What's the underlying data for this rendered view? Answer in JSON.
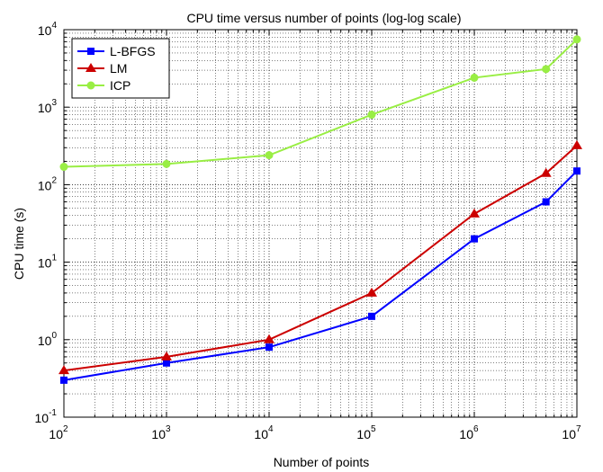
{
  "chart_data": {
    "type": "line",
    "title": "CPU time versus number of points (log-log scale)",
    "xlabel": "Number of points",
    "ylabel": "CPU time (s)",
    "xscale": "log",
    "yscale": "log",
    "xlim": [
      100,
      10000000
    ],
    "ylim": [
      0.1,
      10000
    ],
    "x_ticks": [
      {
        "base": "10",
        "exp": "2",
        "value": 100
      },
      {
        "base": "10",
        "exp": "3",
        "value": 1000
      },
      {
        "base": "10",
        "exp": "4",
        "value": 10000
      },
      {
        "base": "10",
        "exp": "5",
        "value": 100000
      },
      {
        "base": "10",
        "exp": "6",
        "value": 1000000
      },
      {
        "base": "10",
        "exp": "7",
        "value": 10000000
      }
    ],
    "y_ticks": [
      {
        "base": "10",
        "exp": "-1",
        "value": 0.1
      },
      {
        "base": "10",
        "exp": "0",
        "value": 1
      },
      {
        "base": "10",
        "exp": "1",
        "value": 10
      },
      {
        "base": "10",
        "exp": "2",
        "value": 100
      },
      {
        "base": "10",
        "exp": "3",
        "value": 1000
      },
      {
        "base": "10",
        "exp": "4",
        "value": 10000
      }
    ],
    "grid": true,
    "legend_position": "top-left",
    "x": [
      100,
      1000,
      10000,
      100000,
      1000000,
      5000000,
      10000000
    ],
    "series": [
      {
        "name": "L-BFGS",
        "color": "#0000ff",
        "marker": "square",
        "values": [
          0.3,
          0.5,
          0.8,
          2,
          20,
          60,
          150
        ]
      },
      {
        "name": "LM",
        "color": "#cc0000",
        "marker": "triangle",
        "values": [
          0.4,
          0.6,
          1.0,
          4,
          42,
          140,
          320
        ]
      },
      {
        "name": "ICP",
        "color": "#99ee44",
        "marker": "circle",
        "values": [
          170,
          185,
          240,
          800,
          2400,
          3100,
          7500
        ]
      }
    ]
  }
}
